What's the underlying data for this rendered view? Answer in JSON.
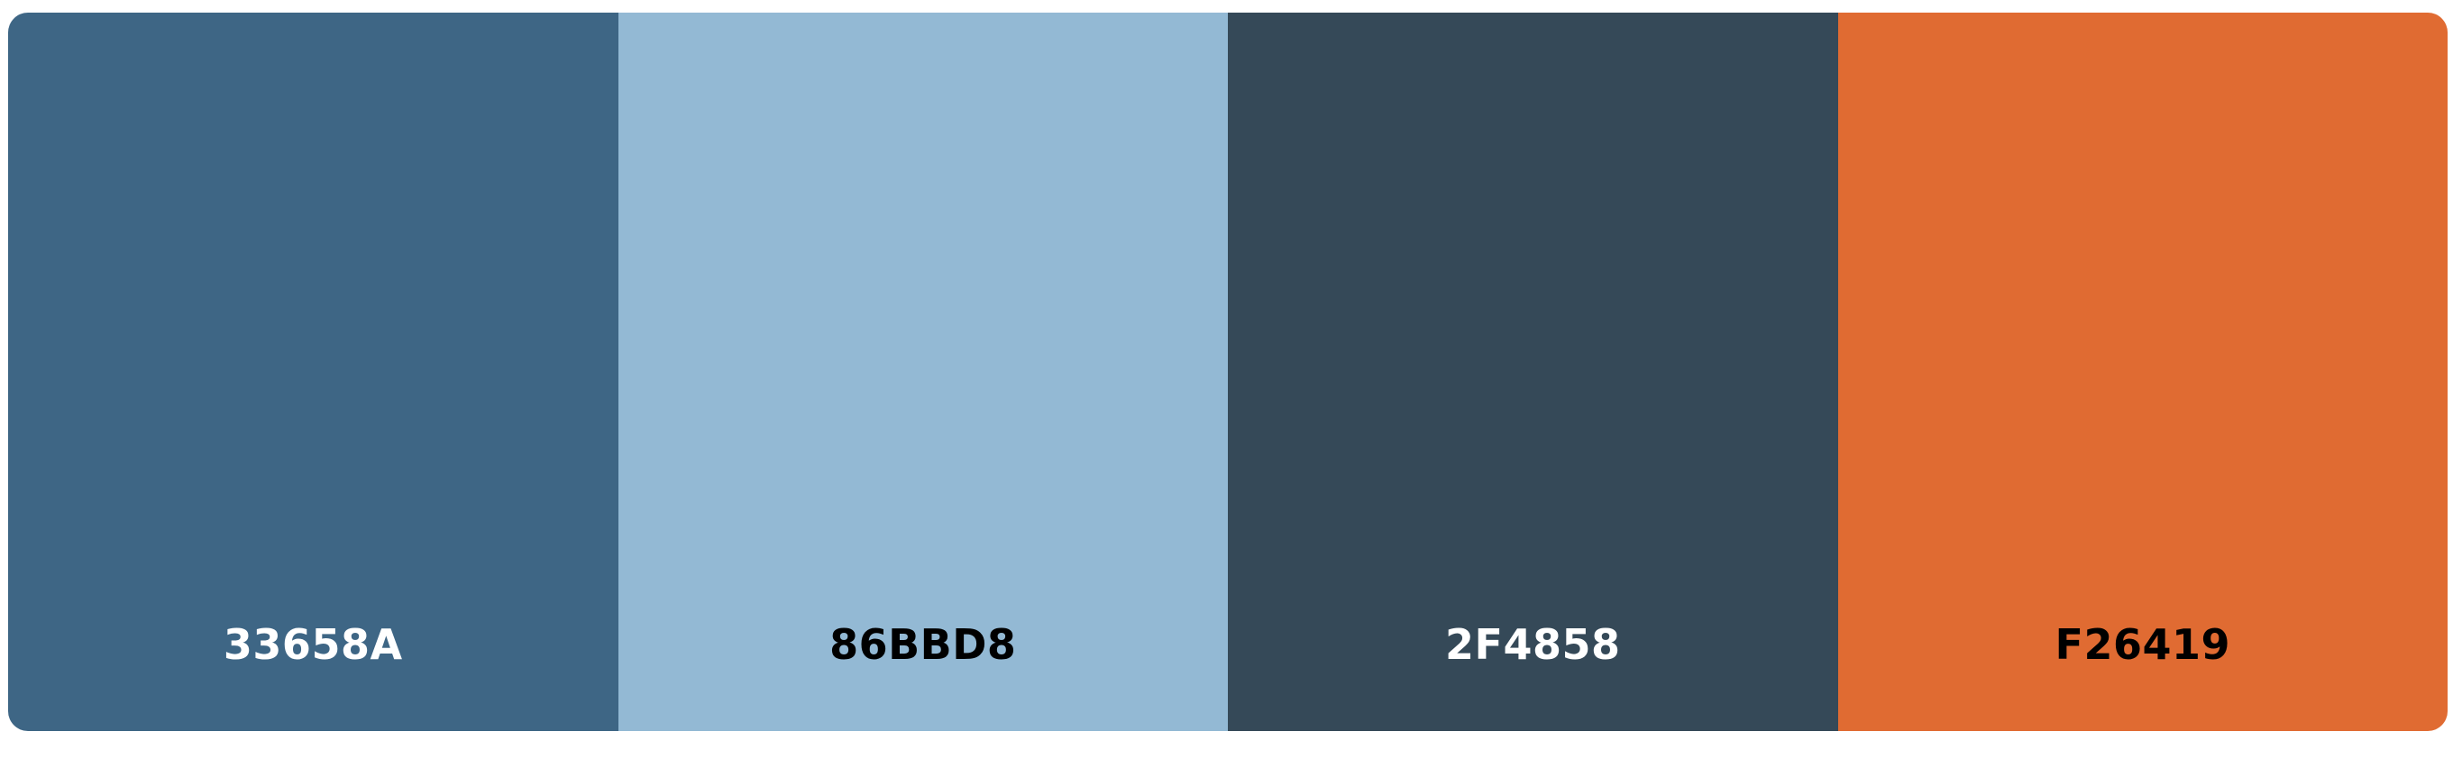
{
  "palette": {
    "swatches": [
      {
        "code": "33658A",
        "color": "#3E6685",
        "text_color": "#FFFFFF"
      },
      {
        "code": "86BBD8",
        "color": "#93B9D4",
        "text_color": "#000000"
      },
      {
        "code": "2F4858",
        "color": "#354958",
        "text_color": "#FFFFFF"
      },
      {
        "code": "F26419",
        "color": "#E06B32",
        "text_color": "#000000"
      }
    ]
  }
}
